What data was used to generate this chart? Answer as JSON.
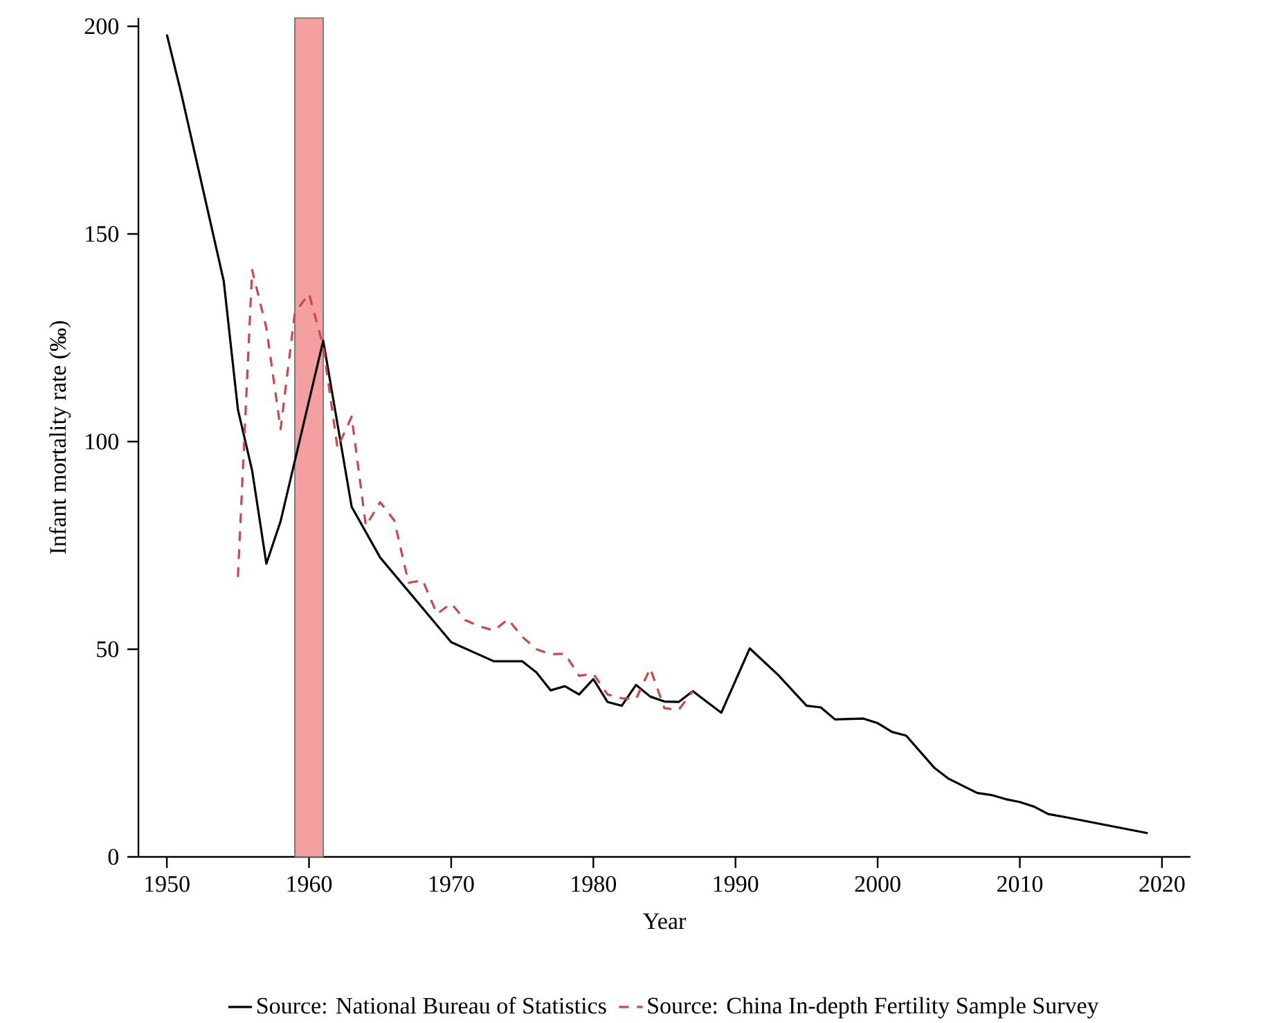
{
  "chart_data": {
    "type": "line",
    "xlabel": "Year",
    "ylabel": "Infant mortality rate (‰)",
    "xlim": [
      1948,
      2022
    ],
    "ylim": [
      0,
      202
    ],
    "xticks": [
      1950,
      1960,
      1970,
      1980,
      1990,
      2000,
      2010,
      2020
    ],
    "yticks": [
      0,
      50,
      100,
      150,
      200
    ],
    "grid": false,
    "legend": "bottom",
    "marker": "none",
    "bands": [
      {
        "axis": "x",
        "from": 1959,
        "to": 1961,
        "color": "#f4a0a0"
      }
    ],
    "series": [
      {
        "name": "Source: National Bureau of Statistics",
        "color": "#000000",
        "line_style": "solid",
        "x": [
          1950,
          1951,
          1954,
          1955,
          1956,
          1957,
          1958,
          1961,
          1963,
          1965,
          1970,
          1973,
          1975,
          1976,
          1977,
          1978,
          1979,
          1980,
          1981,
          1982,
          1983,
          1984,
          1985,
          1986,
          1987,
          1989,
          1991,
          1993,
          1995,
          1996,
          1997,
          1999,
          2000,
          2001,
          2002,
          2004,
          2005,
          2007,
          2008,
          2009,
          2010,
          2011,
          2012,
          2013,
          2019
        ],
        "values": [
          198,
          184,
          138.7,
          107.7,
          93,
          70.6,
          80.8,
          124.3,
          84.3,
          72.1,
          51.7,
          47.1,
          47.1,
          44.4,
          40.1,
          41.1,
          39.1,
          42.8,
          37.3,
          36.4,
          41.4,
          38.6,
          37.4,
          37.3,
          39.9,
          34.7,
          50.2,
          43.8,
          36.4,
          36,
          33.1,
          33.3,
          32.2,
          30.1,
          29.2,
          21.4,
          18.8,
          15.4,
          14.9,
          13.9,
          13.2,
          12.1,
          10.3,
          9.7,
          5.7
        ]
      },
      {
        "name": "Source: China In-depth Fertility Sample Survey",
        "color": "#d04545",
        "line_style": "dashed",
        "x": [
          1955,
          1956,
          1957,
          1958,
          1959,
          1960,
          1961,
          1962,
          1963,
          1964,
          1965,
          1966,
          1967,
          1968,
          1969,
          1970,
          1971,
          1972,
          1973,
          1974,
          1975,
          1976,
          1977,
          1978,
          1979,
          1980,
          1981,
          1982,
          1983,
          1984,
          1985,
          1986,
          1987
        ],
        "values": [
          67.4,
          141.3,
          127.4,
          103,
          131,
          135.6,
          123,
          98.5,
          106,
          79.7,
          85.4,
          81,
          66,
          66.6,
          58.5,
          61,
          57,
          55.5,
          54.5,
          57.2,
          53,
          50,
          48.8,
          48.9,
          43.6,
          44.1,
          39.1,
          38.2,
          38,
          45.4,
          35.8,
          35.4,
          39.9
        ]
      }
    ]
  }
}
